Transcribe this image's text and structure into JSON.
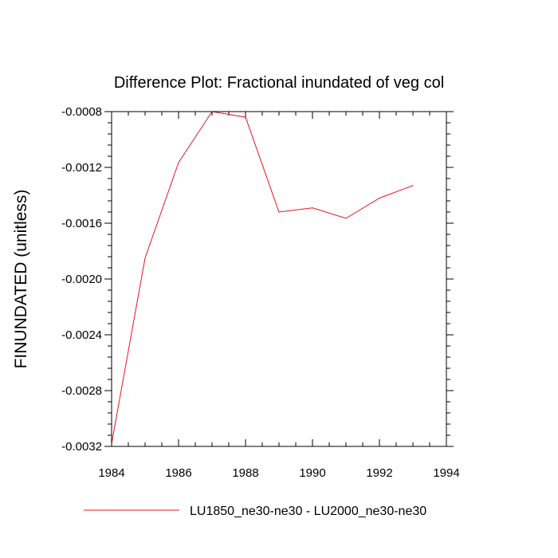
{
  "chart_data": {
    "type": "line",
    "title": "Difference Plot: Fractional inundated of veg col",
    "xlabel": "",
    "ylabel": "FINUNDATED  (unitless)",
    "xlim": [
      1984,
      1994
    ],
    "ylim": [
      -0.0032,
      -0.0008
    ],
    "x_ticks": [
      1984,
      1986,
      1988,
      1990,
      1992,
      1994
    ],
    "x_tick_labels": [
      "1984",
      "1986",
      "1988",
      "1990",
      "1992",
      "1994"
    ],
    "y_ticks": [
      -0.0032,
      -0.0028,
      -0.0024,
      -0.002,
      -0.0016,
      -0.0012,
      -0.0008
    ],
    "y_tick_labels": [
      "-0.0032",
      "-0.0028",
      "-0.0024",
      "-0.0020",
      "-0.0016",
      "-0.0012",
      "-0.0008"
    ],
    "grid": false,
    "legend_position": "bottom",
    "series": [
      {
        "name": "LU1850_ne30-ne30 - LU2000_ne30-ne30",
        "color": "#e8141e",
        "x": [
          1984,
          1985,
          1986,
          1987,
          1988,
          1989,
          1990,
          1991,
          1992,
          1993
        ],
        "y": [
          -0.00318,
          -0.00185,
          -0.001165,
          -0.0008,
          -0.00084,
          -0.00152,
          -0.00149,
          -0.001565,
          -0.00142,
          -0.00133
        ]
      }
    ]
  }
}
